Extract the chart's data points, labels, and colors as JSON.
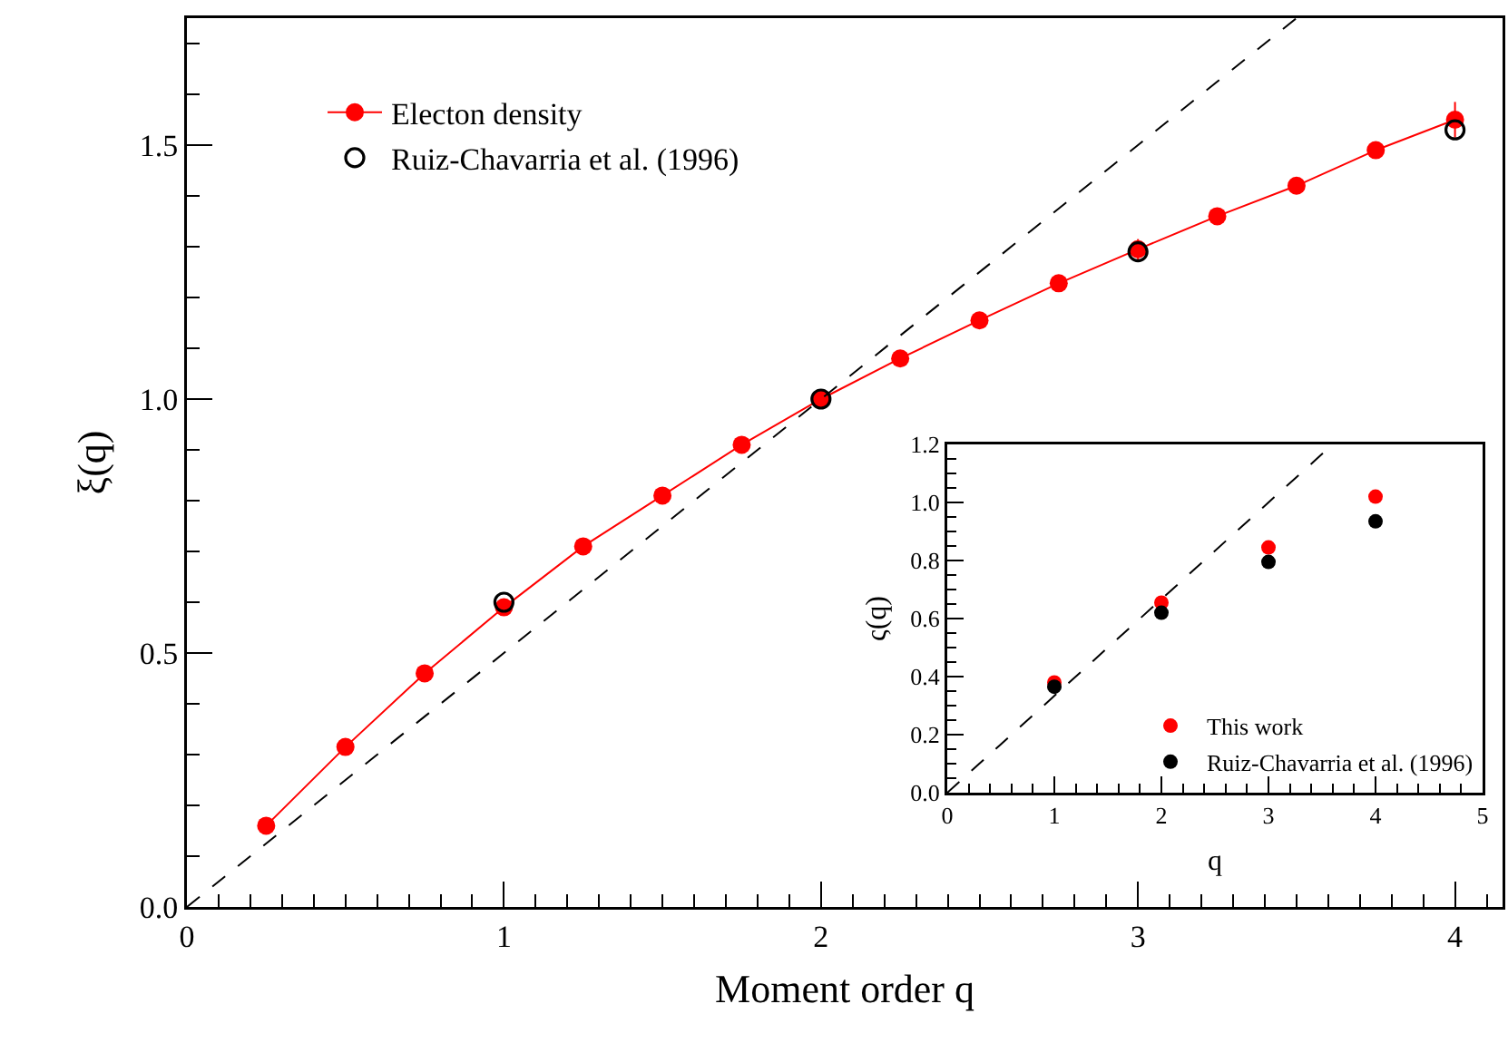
{
  "chart_data": [
    {
      "type": "line",
      "xlabel": "Moment order q",
      "ylabel": "ξ(q)",
      "legend": "top left",
      "xlim": [
        0,
        4.15
      ],
      "ylim": [
        0,
        1.75
      ],
      "xticks": [
        0,
        1,
        2,
        3,
        4,
        {
          "value": 0.1,
          "label": null
        },
        {
          "value": 0.2,
          "label": null
        },
        {
          "value": 0.3,
          "label": null
        },
        {
          "value": 0.4,
          "label": null
        },
        {
          "value": 0.5,
          "label": null
        },
        {
          "value": 0.6,
          "label": null
        },
        {
          "value": 0.7,
          "label": null
        },
        {
          "value": 0.8,
          "label": null
        },
        {
          "value": 0.9,
          "label": null
        },
        {
          "value": 1.1,
          "label": null
        },
        {
          "value": 1.2,
          "label": null
        },
        {
          "value": 1.3,
          "label": null
        },
        {
          "value": 1.4,
          "label": null
        },
        {
          "value": 1.5,
          "label": null
        },
        {
          "value": 1.6,
          "label": null
        },
        {
          "value": 1.7,
          "label": null
        },
        {
          "value": 1.8,
          "label": null
        },
        {
          "value": 1.9,
          "label": null
        },
        {
          "value": 2.1,
          "label": null
        },
        {
          "value": 2.2,
          "label": null
        },
        {
          "value": 2.3,
          "label": null
        },
        {
          "value": 2.4,
          "label": null
        },
        {
          "value": 2.5,
          "label": null
        },
        {
          "value": 2.6,
          "label": null
        },
        {
          "value": 2.7,
          "label": null
        },
        {
          "value": 2.8,
          "label": null
        },
        {
          "value": 2.9,
          "label": null
        },
        {
          "value": 3.1,
          "label": null
        },
        {
          "value": 3.2,
          "label": null
        },
        {
          "value": 3.3,
          "label": null
        },
        {
          "value": 3.4,
          "label": null
        },
        {
          "value": 3.5,
          "label": null
        },
        {
          "value": 3.6,
          "label": null
        },
        {
          "value": 3.7,
          "label": null
        },
        {
          "value": 3.8,
          "label": null
        },
        {
          "value": 3.9,
          "label": null
        },
        {
          "value": 4.1,
          "label": null
        }
      ],
      "yticks": [
        {
          "value": 0,
          "label": "0.0"
        },
        {
          "value": 0.5,
          "label": "0.5"
        },
        {
          "value": 1,
          "label": "1.0"
        },
        {
          "value": 1.5,
          "label": "1.5"
        },
        {
          "value": 0.1,
          "label": null
        },
        {
          "value": 0.2,
          "label": null
        },
        {
          "value": 0.3,
          "label": null
        },
        {
          "value": 0.4,
          "label": null
        },
        {
          "value": 0.6,
          "label": null
        },
        {
          "value": 0.7,
          "label": null
        },
        {
          "value": 0.8,
          "label": null
        },
        {
          "value": 0.9,
          "label": null
        },
        {
          "value": 1.1,
          "label": null
        },
        {
          "value": 1.2,
          "label": null
        },
        {
          "value": 1.3,
          "label": null
        },
        {
          "value": 1.4,
          "label": null
        },
        {
          "value": 1.6,
          "label": null
        },
        {
          "value": 1.7,
          "label": null
        }
      ],
      "series": [
        {
          "name": "Electon density",
          "marker": "circle",
          "color": "#ff0000",
          "x": [
            0.25,
            0.5,
            0.75,
            1,
            1.25,
            1.5,
            1.75,
            2,
            2.25,
            2.5,
            2.75,
            3,
            3.25,
            3.5,
            3.75,
            4
          ],
          "values": [
            0.16,
            0.315,
            0.46,
            0.59,
            0.71,
            0.81,
            0.91,
            1.0,
            1.08,
            1.155,
            1.228,
            1.295,
            1.36,
            1.42,
            1.49,
            1.55
          ],
          "errors": [
            null,
            null,
            null,
            null,
            null,
            null,
            null,
            null,
            null,
            null,
            null,
            0.02,
            null,
            null,
            null,
            0.035
          ]
        },
        {
          "name": "Ruiz-Chavarria et al. (1996)",
          "type": "scatter",
          "marker": "circle-open",
          "color": "#000000",
          "x": [
            1,
            2,
            3,
            4
          ],
          "values": [
            0.6,
            1.0,
            1.29,
            1.53
          ]
        },
        {
          "marker": "none",
          "line_style": "dashed",
          "color": "#000000",
          "x": [
            0,
            3.5
          ],
          "values": [
            0,
            1.75
          ]
        }
      ]
    },
    {
      "type": "scatter",
      "xlabel": "q",
      "ylabel": "ς(q)",
      "legend": "bottom right",
      "xlim": [
        0,
        5
      ],
      "ylim": [
        0,
        1.2
      ],
      "xticks": [
        0,
        1,
        2,
        3,
        4,
        5,
        {
          "value": 0.2,
          "label": null
        },
        {
          "value": 0.4,
          "label": null
        },
        {
          "value": 0.6,
          "label": null
        },
        {
          "value": 0.8,
          "label": null
        },
        {
          "value": 1.2,
          "label": null
        },
        {
          "value": 1.4,
          "label": null
        },
        {
          "value": 1.6,
          "label": null
        },
        {
          "value": 1.8,
          "label": null
        },
        {
          "value": 2.2,
          "label": null
        },
        {
          "value": 2.4,
          "label": null
        },
        {
          "value": 2.6,
          "label": null
        },
        {
          "value": 2.8,
          "label": null
        },
        {
          "value": 3.2,
          "label": null
        },
        {
          "value": 3.4,
          "label": null
        },
        {
          "value": 3.6,
          "label": null
        },
        {
          "value": 3.8,
          "label": null
        },
        {
          "value": 4.2,
          "label": null
        },
        {
          "value": 4.4,
          "label": null
        },
        {
          "value": 4.6,
          "label": null
        },
        {
          "value": 4.8,
          "label": null
        }
      ],
      "yticks": [
        {
          "value": 0,
          "label": "0.0"
        },
        {
          "value": 0.2,
          "label": "0.2"
        },
        {
          "value": 0.4,
          "label": "0.4"
        },
        {
          "value": 0.6,
          "label": "0.6"
        },
        {
          "value": 0.8,
          "label": "0.8"
        },
        {
          "value": 1,
          "label": "1.0"
        },
        {
          "value": 1.2,
          "label": "1.2"
        },
        {
          "value": 0.05,
          "label": null
        },
        {
          "value": 0.1,
          "label": null
        },
        {
          "value": 0.15,
          "label": null
        },
        {
          "value": 0.25,
          "label": null
        },
        {
          "value": 0.3,
          "label": null
        },
        {
          "value": 0.35,
          "label": null
        },
        {
          "value": 0.45,
          "label": null
        },
        {
          "value": 0.5,
          "label": null
        },
        {
          "value": 0.55,
          "label": null
        },
        {
          "value": 0.65,
          "label": null
        },
        {
          "value": 0.7,
          "label": null
        },
        {
          "value": 0.75,
          "label": null
        },
        {
          "value": 0.85,
          "label": null
        },
        {
          "value": 0.9,
          "label": null
        },
        {
          "value": 0.95,
          "label": null
        },
        {
          "value": 1.05,
          "label": null
        },
        {
          "value": 1.1,
          "label": null
        },
        {
          "value": 1.15,
          "label": null
        }
      ],
      "series": [
        {
          "name": "This work",
          "marker": "circle",
          "color": "#ff0000",
          "x": [
            1,
            2,
            3,
            4
          ],
          "values": [
            0.38,
            0.655,
            0.845,
            1.02
          ]
        },
        {
          "name": "Ruiz-Chavarria et al. (1996)",
          "marker": "circle",
          "color": "#000000",
          "x": [
            1,
            2,
            3,
            4
          ],
          "values": [
            0.365,
            0.62,
            0.795,
            0.935
          ]
        },
        {
          "type": "line",
          "marker": "none",
          "line_style": "dashed",
          "color": "#000000",
          "x": [
            0,
            3.6
          ],
          "values": [
            0,
            1.2
          ]
        }
      ]
    }
  ]
}
